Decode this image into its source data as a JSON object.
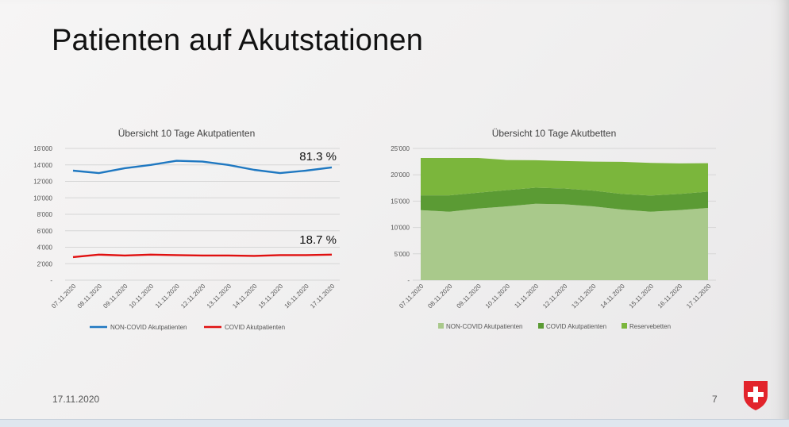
{
  "slide": {
    "title": "Patienten auf Akutstationen",
    "date": "17.11.2020",
    "page_number": "7"
  },
  "colors": {
    "non_covid_line": "#1f78c1",
    "covid_line": "#e01010",
    "non_covid_area": "#a9c98b",
    "covid_area": "#5b9b34",
    "reserve_area": "#7bb63c",
    "shield_red": "#e2232b"
  },
  "chart_data": [
    {
      "type": "line",
      "title": "Übersicht 10 Tage Akutpatienten",
      "categories": [
        "07.11.2020",
        "08.11.2020",
        "09.11.2020",
        "10.11.2020",
        "11.11.2020",
        "12.11.2020",
        "13.11.2020",
        "14.11.2020",
        "15.11.2020",
        "16.11.2020",
        "17.11.2020"
      ],
      "series": [
        {
          "name": "NON-COVID Akutpatienten",
          "values": [
            13300,
            13000,
            13600,
            14000,
            14500,
            14400,
            14000,
            13400,
            13000,
            13300,
            13700
          ]
        },
        {
          "name": "COVID Akutpatienten",
          "values": [
            2800,
            3100,
            3000,
            3100,
            3050,
            3000,
            3000,
            2950,
            3050,
            3050,
            3100
          ]
        }
      ],
      "yticks": [
        "16'000",
        "14'000",
        "12'000",
        "10'000",
        "8'000",
        "6'000",
        "4'000",
        "2'000",
        "-"
      ],
      "ylim": [
        0,
        16000
      ],
      "annotations": [
        "81.3 %",
        "18.7 %"
      ],
      "grid": true,
      "legend": "bottom"
    },
    {
      "type": "area",
      "stacked": true,
      "title": "Übersicht 10 Tage Akutbetten",
      "categories": [
        "07.11.2020",
        "08.11.2020",
        "09.11.2020",
        "10.11.2020",
        "11.11.2020",
        "12.11.2020",
        "13.11.2020",
        "14.11.2020",
        "15.11.2020",
        "16.11.2020",
        "17.11.2020"
      ],
      "series": [
        {
          "name": "NON-COVID Akutpatienten",
          "values": [
            13300,
            13000,
            13600,
            14000,
            14500,
            14400,
            14000,
            13400,
            13000,
            13300,
            13700
          ]
        },
        {
          "name": "COVID Akutpatienten",
          "values": [
            2800,
            3100,
            3000,
            3100,
            3050,
            3000,
            3000,
            2950,
            3050,
            3050,
            3100
          ]
        },
        {
          "name": "Reservebetten",
          "values": [
            7100,
            7100,
            6600,
            5700,
            5200,
            5200,
            5500,
            6100,
            6200,
            5800,
            5400
          ]
        }
      ],
      "yticks": [
        "25'000",
        "20'000",
        "15'000",
        "10'000",
        "5'000",
        "-"
      ],
      "ylim": [
        0,
        25000
      ],
      "grid": true,
      "legend": "bottom"
    }
  ]
}
